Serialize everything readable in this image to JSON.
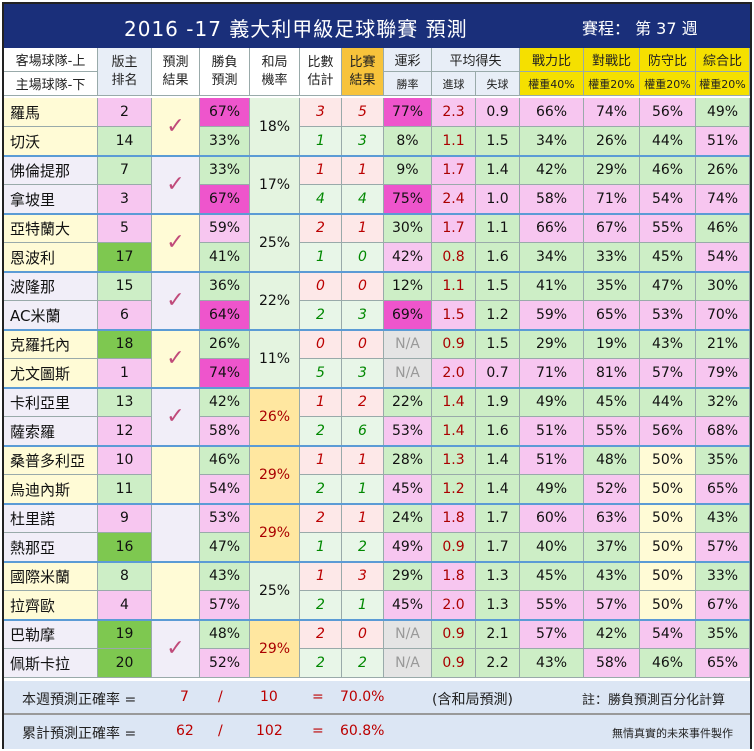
{
  "title": "2016 -17  義大利甲級足球聯賽  預測",
  "round": "賽程： 第 37 週",
  "headers": {
    "teams": [
      "客場球隊-上",
      "主場球隊-下"
    ],
    "rank": [
      "版主",
      "排名"
    ],
    "pred": [
      "預測",
      "結果"
    ],
    "winloss": [
      "勝負",
      "預測"
    ],
    "draw": [
      "和局",
      "機率"
    ],
    "score": [
      "比數",
      "估計"
    ],
    "result": [
      "比賽",
      "結果"
    ],
    "lottery": "運彩",
    "lottery_sub": "勝率",
    "avg": "平均得失",
    "avg_for": "進球",
    "avg_against": "失球",
    "power": "戰力比",
    "power_w": "權重40%",
    "record": "對戰比",
    "record_w": "權重20%",
    "defense": "防守比",
    "defense_w": "權重20%",
    "overall": "綜合比",
    "overall_w": "權重20%"
  },
  "matches": [
    {
      "check": "✓",
      "draw": "18%",
      "draw_hl": false,
      "teams": [
        {
          "name": "羅馬",
          "rank": "2",
          "rank_bg": "pink",
          "win": "67%",
          "win_hl": true,
          "score": "3",
          "result": "5",
          "lottery": "77%",
          "gf": "2.3",
          "ga": "0.9",
          "power": "66%",
          "record": "74%",
          "defense": "56%",
          "overall": "49%"
        },
        {
          "name": "切沃",
          "rank": "14",
          "rank_bg": "green",
          "win": "33%",
          "win_hl": false,
          "score": "1",
          "result": "3",
          "lottery": "8%",
          "gf": "1.1",
          "ga": "1.5",
          "power": "34%",
          "record": "26%",
          "defense": "44%",
          "overall": "51%"
        }
      ]
    },
    {
      "check": "✓",
      "draw": "17%",
      "draw_hl": false,
      "teams": [
        {
          "name": "佛倫提那",
          "rank": "7",
          "rank_bg": "green",
          "win": "33%",
          "win_hl": false,
          "score": "1",
          "result": "1",
          "lottery": "9%",
          "gf": "1.7",
          "ga": "1.4",
          "power": "42%",
          "record": "29%",
          "defense": "46%",
          "overall": "26%"
        },
        {
          "name": "拿坡里",
          "rank": "3",
          "rank_bg": "pink",
          "win": "67%",
          "win_hl": true,
          "score": "4",
          "result": "4",
          "lottery": "75%",
          "gf": "2.4",
          "ga": "1.0",
          "power": "58%",
          "record": "71%",
          "defense": "54%",
          "overall": "74%"
        }
      ]
    },
    {
      "check": "✓",
      "draw": "25%",
      "draw_hl": false,
      "teams": [
        {
          "name": "亞特蘭大",
          "rank": "5",
          "rank_bg": "pink",
          "win": "59%",
          "win_hl": false,
          "score": "2",
          "result": "1",
          "lottery": "30%",
          "gf": "1.7",
          "ga": "1.1",
          "power": "66%",
          "record": "67%",
          "defense": "55%",
          "overall": "46%"
        },
        {
          "name": "恩波利",
          "rank": "17",
          "rank_bg": "dgreen",
          "win": "41%",
          "win_hl": false,
          "score": "1",
          "result": "0",
          "lottery": "42%",
          "gf": "0.8",
          "ga": "1.6",
          "power": "34%",
          "record": "33%",
          "defense": "45%",
          "overall": "54%"
        }
      ]
    },
    {
      "check": "✓",
      "draw": "22%",
      "draw_hl": false,
      "teams": [
        {
          "name": "波隆那",
          "rank": "15",
          "rank_bg": "green",
          "win": "36%",
          "win_hl": false,
          "score": "0",
          "result": "0",
          "lottery": "12%",
          "gf": "1.1",
          "ga": "1.5",
          "power": "41%",
          "record": "35%",
          "defense": "47%",
          "overall": "30%"
        },
        {
          "name": "AC米蘭",
          "rank": "6",
          "rank_bg": "pink",
          "win": "64%",
          "win_hl": true,
          "score": "2",
          "result": "3",
          "lottery": "69%",
          "gf": "1.5",
          "ga": "1.2",
          "power": "59%",
          "record": "65%",
          "defense": "53%",
          "overall": "70%"
        }
      ]
    },
    {
      "check": "✓",
      "draw": "11%",
      "draw_hl": false,
      "teams": [
        {
          "name": "克羅托內",
          "rank": "18",
          "rank_bg": "dgreen",
          "win": "26%",
          "win_hl": false,
          "score": "0",
          "result": "0",
          "lottery": "N/A",
          "gf": "0.9",
          "ga": "1.5",
          "power": "29%",
          "record": "19%",
          "defense": "43%",
          "overall": "21%"
        },
        {
          "name": "尤文圖斯",
          "rank": "1",
          "rank_bg": "pink",
          "win": "74%",
          "win_hl": true,
          "score": "5",
          "result": "3",
          "lottery": "N/A",
          "gf": "2.0",
          "ga": "0.7",
          "power": "71%",
          "record": "81%",
          "defense": "57%",
          "overall": "79%"
        }
      ]
    },
    {
      "check": "✓",
      "draw": "26%",
      "draw_hl": true,
      "teams": [
        {
          "name": "卡利亞里",
          "rank": "13",
          "rank_bg": "green",
          "win": "42%",
          "win_hl": false,
          "score": "1",
          "result": "2",
          "lottery": "22%",
          "gf": "1.4",
          "ga": "1.9",
          "power": "49%",
          "record": "45%",
          "defense": "44%",
          "overall": "32%"
        },
        {
          "name": "薩索羅",
          "rank": "12",
          "rank_bg": "pink",
          "win": "58%",
          "win_hl": false,
          "score": "2",
          "result": "6",
          "lottery": "53%",
          "gf": "1.4",
          "ga": "1.6",
          "power": "51%",
          "record": "55%",
          "defense": "56%",
          "overall": "68%"
        }
      ]
    },
    {
      "check": "",
      "draw": "29%",
      "draw_hl": true,
      "teams": [
        {
          "name": "桑普多利亞",
          "rank": "10",
          "rank_bg": "pink",
          "win": "46%",
          "win_hl": false,
          "score": "1",
          "result": "1",
          "lottery": "28%",
          "gf": "1.3",
          "ga": "1.4",
          "power": "51%",
          "record": "48%",
          "defense": "50%",
          "overall": "35%"
        },
        {
          "name": "烏迪內斯",
          "rank": "11",
          "rank_bg": "green",
          "win": "54%",
          "win_hl": false,
          "score": "2",
          "result": "1",
          "lottery": "45%",
          "gf": "1.2",
          "ga": "1.4",
          "power": "49%",
          "record": "52%",
          "defense": "50%",
          "overall": "65%"
        }
      ]
    },
    {
      "check": "",
      "draw": "29%",
      "draw_hl": true,
      "teams": [
        {
          "name": "杜里諾",
          "rank": "9",
          "rank_bg": "pink",
          "win": "53%",
          "win_hl": false,
          "score": "2",
          "result": "1",
          "lottery": "24%",
          "gf": "1.8",
          "ga": "1.7",
          "power": "60%",
          "record": "63%",
          "defense": "50%",
          "overall": "43%"
        },
        {
          "name": "熱那亞",
          "rank": "16",
          "rank_bg": "dgreen",
          "win": "47%",
          "win_hl": false,
          "score": "1",
          "result": "2",
          "lottery": "49%",
          "gf": "0.9",
          "ga": "1.7",
          "power": "40%",
          "record": "37%",
          "defense": "50%",
          "overall": "57%"
        }
      ]
    },
    {
      "check": "",
      "draw": "25%",
      "draw_hl": false,
      "teams": [
        {
          "name": "國際米蘭",
          "rank": "8",
          "rank_bg": "green",
          "win": "43%",
          "win_hl": false,
          "score": "1",
          "result": "3",
          "lottery": "29%",
          "gf": "1.8",
          "ga": "1.3",
          "power": "45%",
          "record": "43%",
          "defense": "50%",
          "overall": "33%"
        },
        {
          "name": "拉齊歐",
          "rank": "4",
          "rank_bg": "pink",
          "win": "57%",
          "win_hl": false,
          "score": "2",
          "result": "1",
          "lottery": "45%",
          "gf": "2.0",
          "ga": "1.3",
          "power": "55%",
          "record": "57%",
          "defense": "50%",
          "overall": "67%"
        }
      ]
    },
    {
      "check": "✓",
      "draw": "29%",
      "draw_hl": true,
      "teams": [
        {
          "name": "巴勒摩",
          "rank": "19",
          "rank_bg": "dgreen",
          "win": "48%",
          "win_hl": false,
          "score": "2",
          "result": "0",
          "lottery": "N/A",
          "gf": "0.9",
          "ga": "2.1",
          "power": "57%",
          "record": "42%",
          "defense": "54%",
          "overall": "35%"
        },
        {
          "name": "佩斯卡拉",
          "rank": "20",
          "rank_bg": "dgreen",
          "win": "52%",
          "win_hl": false,
          "score": "2",
          "result": "2",
          "lottery": "N/A",
          "gf": "0.9",
          "ga": "2.2",
          "power": "43%",
          "record": "58%",
          "defense": "46%",
          "overall": "65%"
        }
      ]
    }
  ],
  "footer": {
    "week_label": "本週預測正確率 =",
    "week_correct": "7",
    "slash1": "/",
    "week_total": "10",
    "eq1": "=",
    "week_rate": "70.0%",
    "week_note": "(含和局預測)",
    "week_remark": "註：勝負預測百分化計算",
    "cum_label": "累計預測正確率 =",
    "cum_correct": "62",
    "slash2": "/",
    "cum_total": "102",
    "eq2": "=",
    "cum_rate": "60.8%",
    "credit": "無情真實的未來事件製作"
  },
  "colors": {
    "header_bg": "#1a2f7a",
    "result_header": "#f7c33b",
    "weight_header": "#f5e000",
    "pink": "#f7c6f0",
    "strong_pink": "#ee55cc",
    "green": "#cdeec6",
    "dark_green": "#7ec850",
    "yellow": "#ffe7a0",
    "footer": "#dce6f4"
  }
}
